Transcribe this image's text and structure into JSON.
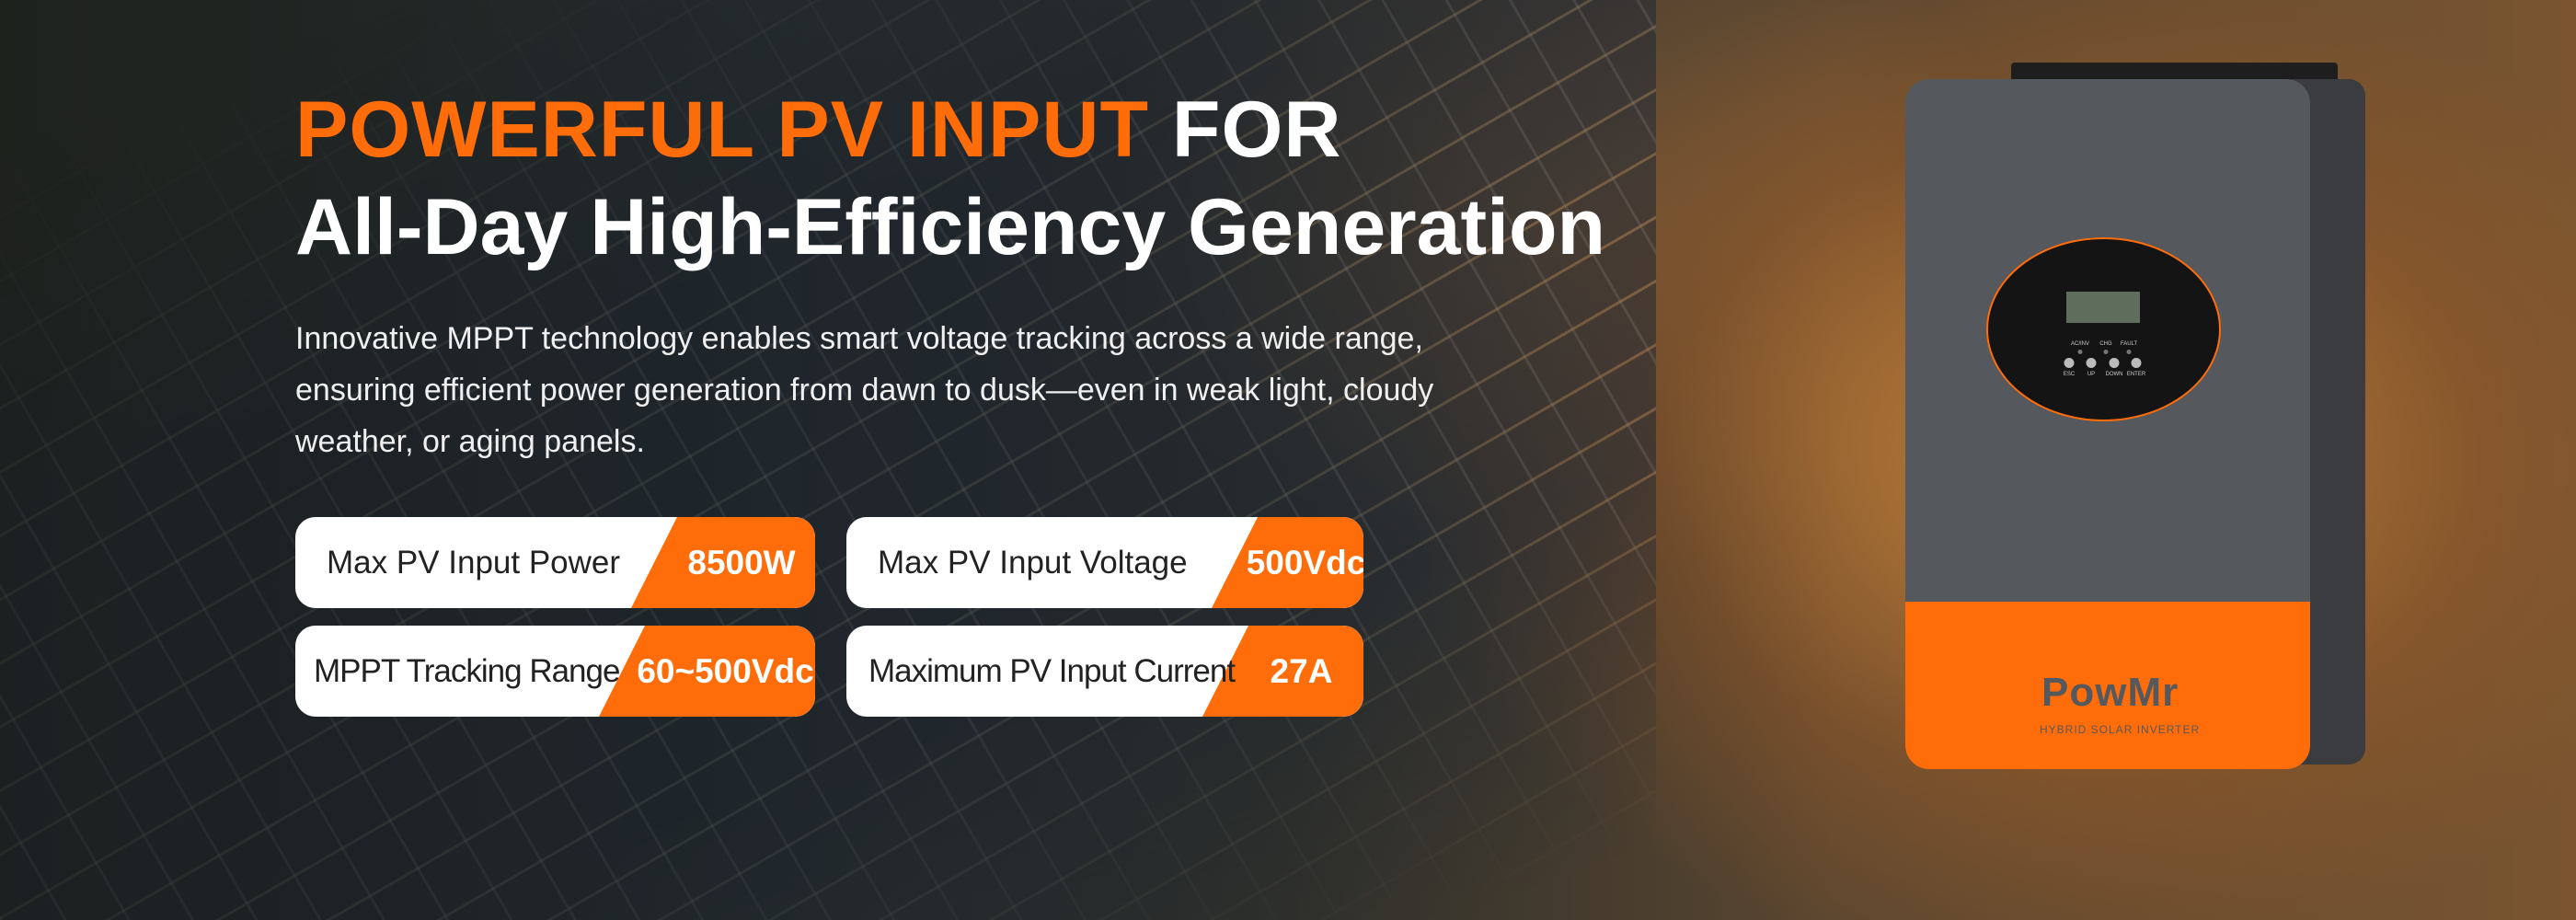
{
  "headline": {
    "highlight": "POWERFUL PV INPUT",
    "rest": " FOR",
    "line2": "All-Day High-Efficiency Generation"
  },
  "description": "Innovative MPPT technology enables smart voltage tracking across a wide range, ensuring efficient power generation from dawn to dusk—even in weak light, cloudy weather, or aging panels.",
  "specs": [
    {
      "label": "Max PV Input Power",
      "value": "8500W"
    },
    {
      "label": "Max PV Input Voltage",
      "value": "500Vdc"
    },
    {
      "label": "MPPT Tracking Range",
      "value": "60~500Vdc"
    },
    {
      "label": "Maximum PV Input Current",
      "value": "27A"
    }
  ],
  "product": {
    "brand": "PowMr",
    "subtitle": "HYBRID SOLAR INVERTER",
    "buttons": [
      "ESC",
      "UP",
      "DOWN",
      "ENTER"
    ],
    "indicators": [
      "AC/INV",
      "CHG",
      "FAULT"
    ]
  },
  "colors": {
    "accent": "#ff6d0a",
    "inverter_body": "#55585c"
  }
}
